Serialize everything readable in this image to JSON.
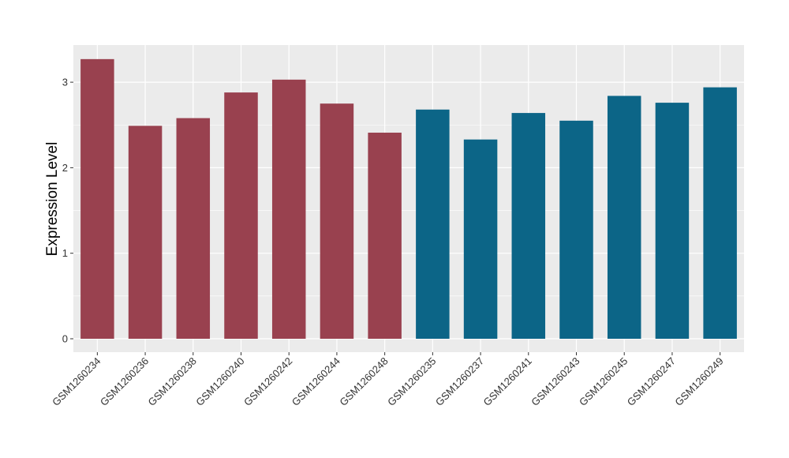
{
  "chart_data": {
    "type": "bar",
    "title": "",
    "xlabel": "",
    "ylabel": "Expression Level",
    "ylim": [
      0,
      3.4
    ],
    "yticks": [
      "0",
      "1",
      "2",
      "3"
    ],
    "grid": true,
    "categories": [
      "GSM1260234",
      "GSM1260236",
      "GSM1260238",
      "GSM1260240",
      "GSM1260242",
      "GSM1260244",
      "GSM1260248",
      "GSM1260235",
      "GSM1260237",
      "GSM1260241",
      "GSM1260243",
      "GSM1260245",
      "GSM1260247",
      "GSM1260249"
    ],
    "values": [
      3.27,
      2.49,
      2.58,
      2.88,
      3.03,
      2.75,
      2.41,
      2.68,
      2.33,
      2.64,
      2.55,
      2.84,
      2.76,
      2.94
    ],
    "bar_colors": [
      "#99414F",
      "#99414F",
      "#99414F",
      "#99414F",
      "#99414F",
      "#99414F",
      "#99414F",
      "#0C6587",
      "#0C6587",
      "#0C6587",
      "#0C6587",
      "#0C6587",
      "#0C6587",
      "#0C6587"
    ],
    "panel_color": "#EBEBEB",
    "gridline_color": "#FFFFFF"
  }
}
